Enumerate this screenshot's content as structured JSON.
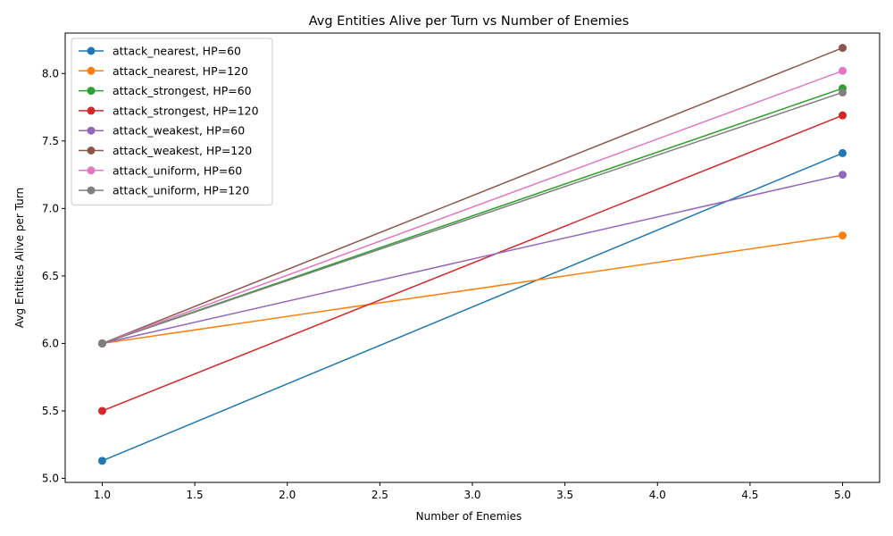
{
  "chart_data": {
    "type": "line",
    "title": "Avg Entities Alive per Turn vs Number of Enemies",
    "xlabel": "Number of Enemies",
    "ylabel": "Avg Entities Alive per Turn",
    "xlim": [
      0.8,
      5.2
    ],
    "ylim": [
      4.97,
      8.3
    ],
    "xticks": [
      1.0,
      1.5,
      2.0,
      2.5,
      3.0,
      3.5,
      4.0,
      4.5,
      5.0
    ],
    "xtick_labels": [
      "1.0",
      "1.5",
      "2.0",
      "2.5",
      "3.0",
      "3.5",
      "4.0",
      "4.5",
      "5.0"
    ],
    "yticks": [
      5.0,
      5.5,
      6.0,
      6.5,
      7.0,
      7.5,
      8.0
    ],
    "ytick_labels": [
      "5.0",
      "5.5",
      "6.0",
      "6.5",
      "7.0",
      "7.5",
      "8.0"
    ],
    "grid": false,
    "legend_position": "top-left",
    "x": [
      1,
      5
    ],
    "series": [
      {
        "name": "attack_nearest, HP=60",
        "color": "#1f77b4",
        "values": [
          5.13,
          7.41
        ]
      },
      {
        "name": "attack_nearest, HP=120",
        "color": "#ff7f0e",
        "values": [
          6.0,
          6.8
        ]
      },
      {
        "name": "attack_strongest, HP=60",
        "color": "#2ca02c",
        "values": [
          6.0,
          7.89
        ]
      },
      {
        "name": "attack_strongest, HP=120",
        "color": "#d62728",
        "values": [
          5.5,
          7.69
        ]
      },
      {
        "name": "attack_weakest, HP=60",
        "color": "#9467bd",
        "values": [
          6.0,
          7.25
        ]
      },
      {
        "name": "attack_weakest, HP=120",
        "color": "#8c564b",
        "values": [
          6.0,
          8.19
        ]
      },
      {
        "name": "attack_uniform, HP=60",
        "color": "#e377c2",
        "values": [
          6.0,
          8.02
        ]
      },
      {
        "name": "attack_uniform, HP=120",
        "color": "#7f7f7f",
        "values": [
          6.0,
          7.86
        ]
      }
    ]
  }
}
